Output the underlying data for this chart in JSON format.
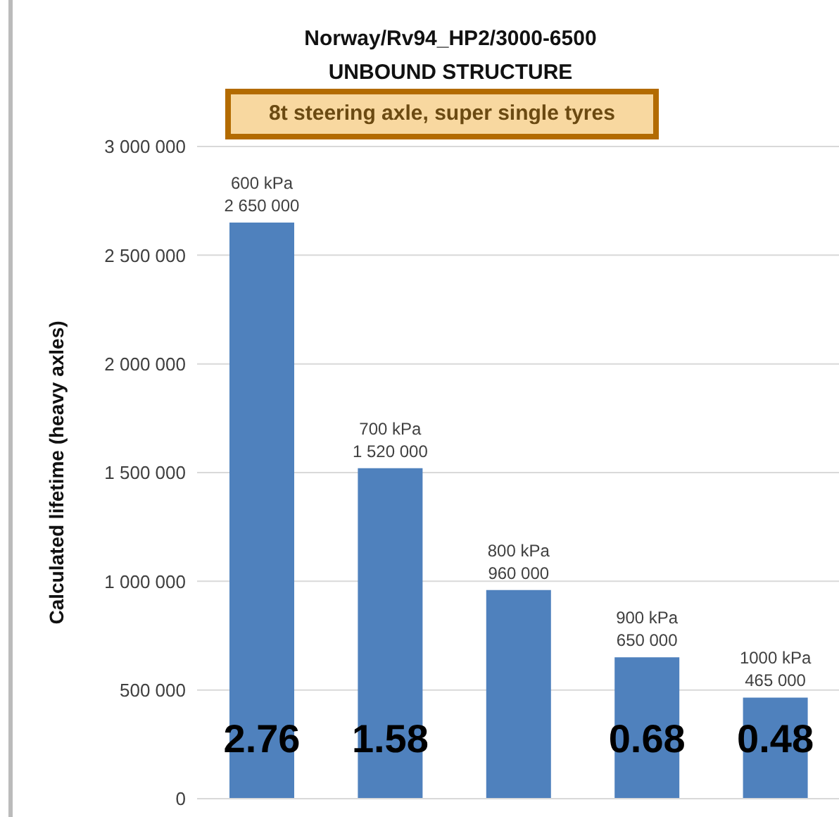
{
  "chart_data": {
    "type": "bar",
    "title": "Norway/Rv94_HP2/3000-6500\nUNBOUND STRUCTURE",
    "subtitle": "8t steering axle, super single tyres",
    "ylabel": "Calculated  lifetime  (heavy axles)",
    "categories": [
      null,
      null,
      null,
      null,
      null
    ],
    "values": [
      2650000,
      1520000,
      960000,
      650000,
      465000
    ],
    "value_labels": [
      "600 kPa\n2 650 000",
      "700 kPa\n1 520 000",
      "800 kPa\n960 000",
      "900 kPa\n650 000",
      "1000 kPa\n465 000"
    ],
    "annotations": [
      "2.76",
      "1.58",
      null,
      "0.68",
      "0.48"
    ],
    "color": "#4f81bd",
    "ylim": [
      0,
      3000000
    ],
    "yticks": [
      {
        "value": 0,
        "label": "0"
      },
      {
        "value": 500000,
        "label": "500 000"
      },
      {
        "value": 1000000,
        "label": "1 000 000"
      },
      {
        "value": 1500000,
        "label": "1 500 000"
      },
      {
        "value": 2000000,
        "label": "2 000 000"
      },
      {
        "value": 2500000,
        "label": "2 500 000"
      },
      {
        "value": 3000000,
        "label": "3 000 000"
      }
    ],
    "grid": "y",
    "tick_labels": "y"
  }
}
